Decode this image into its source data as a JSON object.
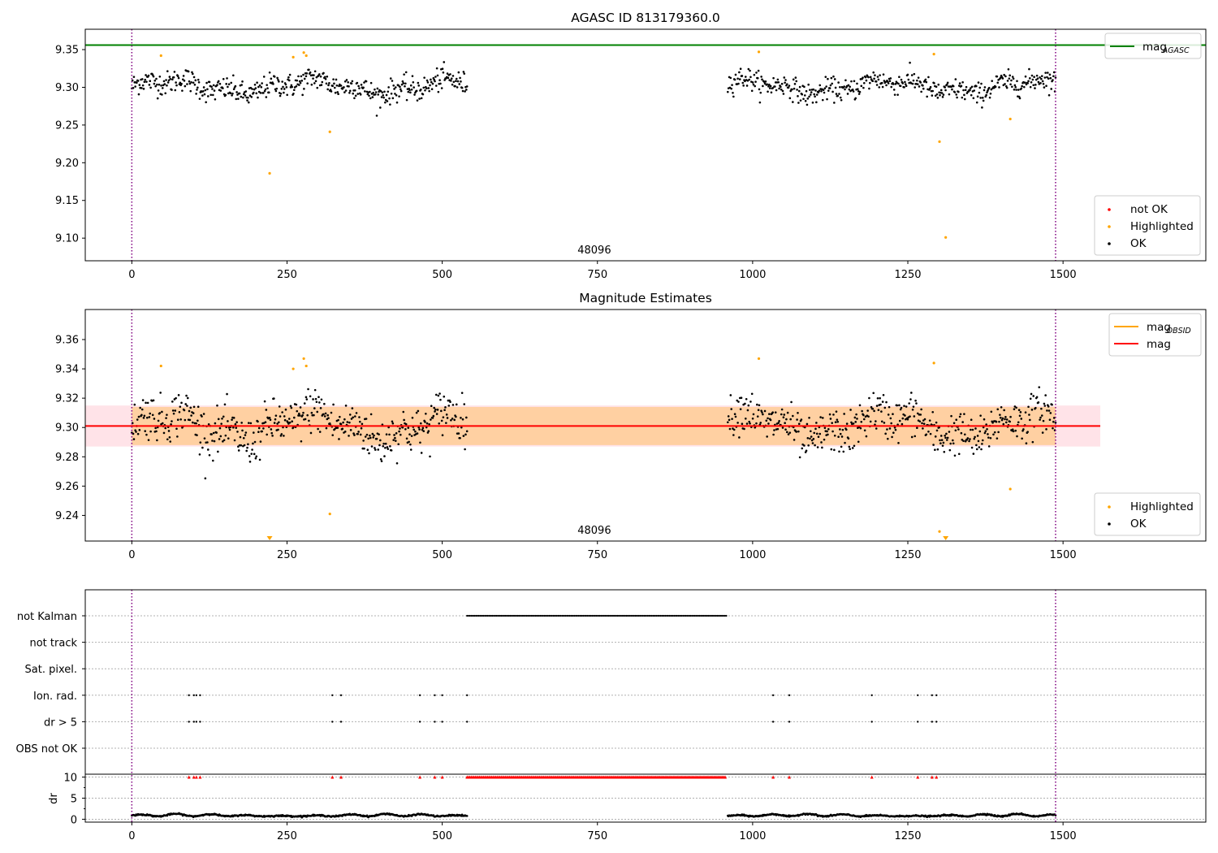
{
  "chart_data": [
    {
      "type": "scatter",
      "title": "AGASC ID 813179360.0",
      "xlim": [
        -75,
        1730
      ],
      "ylim": [
        9.07,
        9.377
      ],
      "yticks": [
        9.1,
        9.15,
        9.2,
        9.25,
        9.3,
        9.35
      ],
      "ytick_labels": [
        "9.10",
        "9.15",
        "9.20",
        "9.25",
        "9.30",
        "9.35"
      ],
      "xticks": [
        0,
        250,
        500,
        750,
        1000,
        1250,
        1500
      ],
      "xtick_labels": [
        "0",
        "250",
        "500",
        "750",
        "1000",
        "1250",
        "1500"
      ],
      "annotation": "48096",
      "annotation_x": 745,
      "obsid_bounds": [
        0,
        1488
      ],
      "reference_line": {
        "name": "mag_AGASC",
        "label": "mag",
        "subscript": "AGASC",
        "value": 9.356,
        "color": "#008000"
      },
      "legend_top": {
        "placement": "top-right",
        "entries": [
          {
            "label": "mag",
            "subscript": "AGASC",
            "color": "#008000"
          }
        ]
      },
      "legend_bottom": {
        "placement": "bottom-right",
        "entries": [
          {
            "label": "not OK",
            "color": "#ff0000"
          },
          {
            "label": "Highlighted",
            "color": "#ffa500"
          },
          {
            "label": "OK",
            "color": "#000000"
          }
        ]
      },
      "ok_segments": [
        {
          "x_start": 0,
          "x_end": 540,
          "count": 480,
          "mean": 9.301,
          "spread": 0.013
        },
        {
          "x_start": 960,
          "x_end": 1488,
          "count": 460,
          "mean": 9.301,
          "spread": 0.012
        }
      ],
      "highlighted_points": [
        {
          "x": 47,
          "y": 9.342
        },
        {
          "x": 222,
          "y": 9.186
        },
        {
          "x": 260,
          "y": 9.34
        },
        {
          "x": 277,
          "y": 9.346
        },
        {
          "x": 281,
          "y": 9.342
        },
        {
          "x": 319,
          "y": 9.241
        },
        {
          "x": 1010,
          "y": 9.347
        },
        {
          "x": 1292,
          "y": 9.344
        },
        {
          "x": 1301,
          "y": 9.228
        },
        {
          "x": 1311,
          "y": 9.101
        },
        {
          "x": 1415,
          "y": 9.258
        }
      ]
    },
    {
      "type": "scatter",
      "title": "Magnitude Estimates",
      "xlim": [
        -75,
        1730
      ],
      "ylim": [
        9.2225,
        9.3805
      ],
      "yticks": [
        9.24,
        9.26,
        9.28,
        9.3,
        9.32,
        9.34,
        9.36
      ],
      "ytick_labels": [
        "9.24",
        "9.26",
        "9.28",
        "9.30",
        "9.32",
        "9.34",
        "9.36"
      ],
      "xticks": [
        0,
        250,
        500,
        750,
        1000,
        1250,
        1500
      ],
      "xtick_labels": [
        "0",
        "250",
        "500",
        "750",
        "1000",
        "1250",
        "1500"
      ],
      "annotation": "48096",
      "annotation_x": 745,
      "obsid_bounds": [
        0,
        1488
      ],
      "mag_line": {
        "label": "mag",
        "value": 9.301,
        "color": "#ff0000"
      },
      "mag_band": {
        "low": 9.287,
        "high": 9.315,
        "x_end": 1560,
        "color": "#ffc0cb"
      },
      "obsid_line": {
        "label": "mag",
        "subscript": "OBSID",
        "value": 9.301,
        "color": "#ffa500"
      },
      "obsid_band": {
        "low": 9.288,
        "high": 9.314,
        "x_start": 0,
        "x_end": 1488,
        "color": "#ffa500"
      },
      "legend_top": {
        "placement": "top-right",
        "entries": [
          {
            "label": "mag",
            "subscript": "OBSID",
            "color": "#ffa500"
          },
          {
            "label": "mag",
            "subscript": "",
            "color": "#ff0000"
          }
        ]
      },
      "legend_bottom": {
        "placement": "bottom-right",
        "entries": [
          {
            "label": "Highlighted",
            "color": "#ffa500"
          },
          {
            "label": "OK",
            "color": "#000000"
          }
        ]
      },
      "ok_segments": [
        {
          "x_start": 0,
          "x_end": 540,
          "count": 480,
          "mean": 9.301,
          "spread": 0.013
        },
        {
          "x_start": 960,
          "x_end": 1488,
          "count": 460,
          "mean": 9.301,
          "spread": 0.012
        }
      ],
      "highlighted_points": [
        {
          "x": 47,
          "y": 9.342
        },
        {
          "x": 260,
          "y": 9.34
        },
        {
          "x": 277,
          "y": 9.347
        },
        {
          "x": 281,
          "y": 9.342
        },
        {
          "x": 319,
          "y": 9.241
        },
        {
          "x": 1010,
          "y": 9.347
        },
        {
          "x": 1292,
          "y": 9.344
        },
        {
          "x": 1301,
          "y": 9.229
        },
        {
          "x": 1415,
          "y": 9.258
        }
      ],
      "out_of_range_markers": [
        {
          "x": 222
        },
        {
          "x": 1311
        }
      ]
    },
    {
      "type": "scatter",
      "title": "",
      "xlim": [
        -75,
        1730
      ],
      "xticks": [
        0,
        250,
        500,
        750,
        1000,
        1250,
        1500
      ],
      "xtick_labels": [
        "0",
        "250",
        "500",
        "750",
        "1000",
        "1250",
        "1500"
      ],
      "obsid_bounds": [
        0,
        1488
      ],
      "flag_rows": [
        "not Kalman",
        "not track",
        "Sat. pixel.",
        "Ion. rad.",
        "dr > 5",
        "OBS not OK"
      ],
      "flag_points": {
        "not Kalman": {
          "ranges": [
            [
              540,
              958
            ]
          ],
          "points": []
        },
        "not track": {
          "ranges": [],
          "points": []
        },
        "Sat. pixel.": {
          "ranges": [],
          "points": []
        },
        "Ion. rad.": {
          "ranges": [],
          "points": [
            92,
            100,
            104,
            110,
            323,
            337,
            464,
            488,
            500,
            540,
            1033,
            1059,
            1192,
            1266,
            1289,
            1296
          ]
        },
        "dr > 5": {
          "ranges": [],
          "points": [
            92,
            100,
            104,
            110,
            323,
            337,
            464,
            488,
            500,
            540,
            1033,
            1059,
            1192,
            1266,
            1289,
            1296
          ]
        },
        "OBS not OK": {
          "ranges": [],
          "points": []
        }
      },
      "dr_panel": {
        "ylabel": "dr",
        "ylim": [
          -0.3,
          10.3
        ],
        "yticks": [
          0,
          5,
          10
        ],
        "ytick_labels": [
          "0",
          "5",
          "10"
        ],
        "clip_value": 10,
        "clipped_ranges": [
          [
            540,
            958
          ]
        ],
        "clipped_points": [
          92,
          100,
          104,
          110,
          323,
          337,
          464,
          488,
          500,
          1033,
          1059,
          1192,
          1266,
          1289,
          1296
        ],
        "segments": [
          {
            "x_start": 0,
            "x_end": 540,
            "level": 0.9,
            "amplitude": 0.6
          },
          {
            "x_start": 960,
            "x_end": 1488,
            "level": 0.9,
            "amplitude": 0.6
          }
        ]
      }
    }
  ]
}
